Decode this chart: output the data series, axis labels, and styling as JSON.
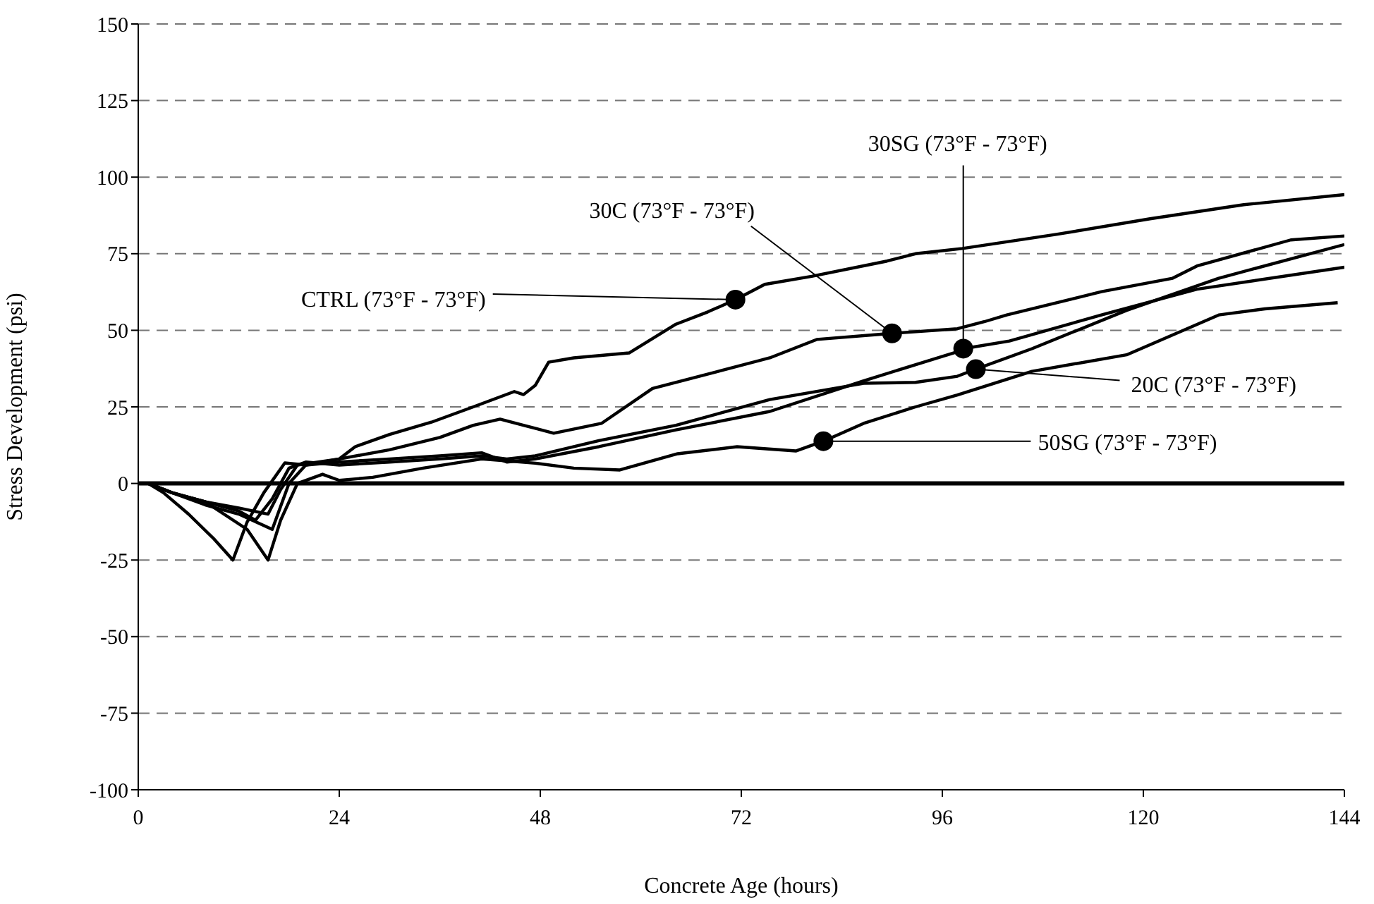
{
  "chart_data": {
    "type": "line",
    "xlabel": "Concrete Age (hours)",
    "ylabel": "Stress Development (psi)",
    "xlim": [
      0,
      144
    ],
    "xticks": [
      0,
      24,
      48,
      72,
      96,
      120,
      144
    ],
    "ylim": [
      -100,
      150
    ],
    "yticks": [
      -100,
      -75,
      -50,
      -25,
      0,
      25,
      50,
      75,
      100,
      125,
      150
    ],
    "grid": "y",
    "marker": "none",
    "line_style": "solid",
    "ref_lines": [
      {
        "axis": "y",
        "value": 0,
        "color": "#000000"
      }
    ],
    "series": [
      {
        "color": "#000000",
        "x": [
          1.2,
          3,
          6,
          9,
          11.3,
          13,
          15,
          17.5,
          20,
          24,
          25.9,
          30,
          35,
          40,
          44.9,
          46,
          47.4,
          49,
          52,
          58.6,
          64.2,
          68,
          71.3,
          74.8,
          80.4,
          89.4,
          92.8,
          98.4,
          109.6,
          120.8,
          132,
          144
        ],
        "values": [
          0,
          -3,
          -10,
          -18,
          -25,
          -12.6,
          -3,
          6.7,
          6,
          8,
          12,
          16,
          20,
          25,
          30,
          29,
          32,
          39.6,
          41,
          42.6,
          52,
          56,
          60,
          65,
          67.6,
          72.6,
          75,
          76.7,
          81.3,
          86.4,
          91,
          94.3
        ]
      },
      {
        "color": "#000000",
        "x": [
          1.2,
          4,
          8,
          12,
          15.5,
          17,
          19,
          24,
          30,
          36,
          40,
          43.2,
          46,
          49.6,
          55.3,
          61.4,
          69.8,
          75.4,
          81,
          90,
          97.8,
          101,
          103.7,
          115,
          123.5,
          126.4,
          137.6,
          144
        ],
        "values": [
          0,
          -3,
          -6,
          -8,
          -10,
          -2,
          6,
          8,
          11,
          15,
          19,
          21,
          19,
          16.4,
          19.6,
          31,
          37,
          41,
          47,
          49,
          50.5,
          52.8,
          55,
          62.6,
          67,
          71,
          79.5,
          80.8
        ]
      },
      {
        "color": "#000000",
        "x": [
          1.2,
          4,
          8,
          12,
          16,
          18,
          20,
          24,
          30,
          36,
          41,
          44,
          47.4,
          55,
          64.2,
          75.4,
          86.6,
          97.8,
          98.5,
          104,
          115,
          126.4,
          144
        ],
        "values": [
          0,
          -3,
          -7,
          -10,
          -15,
          0,
          6,
          7,
          8,
          9,
          10,
          7,
          8,
          12,
          17.5,
          23.5,
          33.5,
          43,
          44,
          46.5,
          55,
          63.4,
          70.6
        ]
      },
      {
        "color": "#000000",
        "x": [
          1.2,
          4,
          8,
          12,
          14,
          16,
          18,
          20,
          24,
          30,
          36,
          41,
          44,
          47.4,
          55,
          64.2,
          75.4,
          86.6,
          92.8,
          97.8,
          100,
          106.7,
          118,
          129,
          144
        ],
        "values": [
          0,
          -3,
          -6,
          -9,
          -12,
          -5,
          5,
          7,
          6,
          7,
          8,
          9,
          8,
          9,
          14,
          19,
          27.4,
          32.7,
          33,
          35,
          37.3,
          44,
          56.5,
          67,
          78
        ]
      },
      {
        "color": "#000000",
        "x": [
          1.2,
          4,
          8,
          13,
          15.5,
          17,
          19,
          22,
          24,
          28,
          34,
          41,
          47.4,
          52,
          57.5,
          64.4,
          71.5,
          78.5,
          81.8,
          86.6,
          92.8,
          97.8,
          106.7,
          118,
          129,
          134.5,
          143.2
        ],
        "values": [
          0,
          -3,
          -6,
          -15,
          -25,
          -12,
          0,
          3,
          1,
          2,
          5,
          8,
          6.6,
          5,
          4.4,
          9.7,
          12,
          10.6,
          13.8,
          19.6,
          25,
          28.9,
          36.6,
          42,
          55,
          57,
          59
        ]
      }
    ],
    "annotations": [
      {
        "text": "CTRL (73°F - 73°F)",
        "x": 71.3,
        "y": 60
      },
      {
        "text": "30C (73°F - 73°F)",
        "x": 90,
        "y": 49
      },
      {
        "text": "30SG (73°F - 73°F)",
        "x": 98.5,
        "y": 44
      },
      {
        "text": "20C (73°F - 73°F)",
        "x": 100,
        "y": 37.3
      },
      {
        "text": "50SG (73°F - 73°F)",
        "x": 81.8,
        "y": 13.8
      }
    ]
  }
}
